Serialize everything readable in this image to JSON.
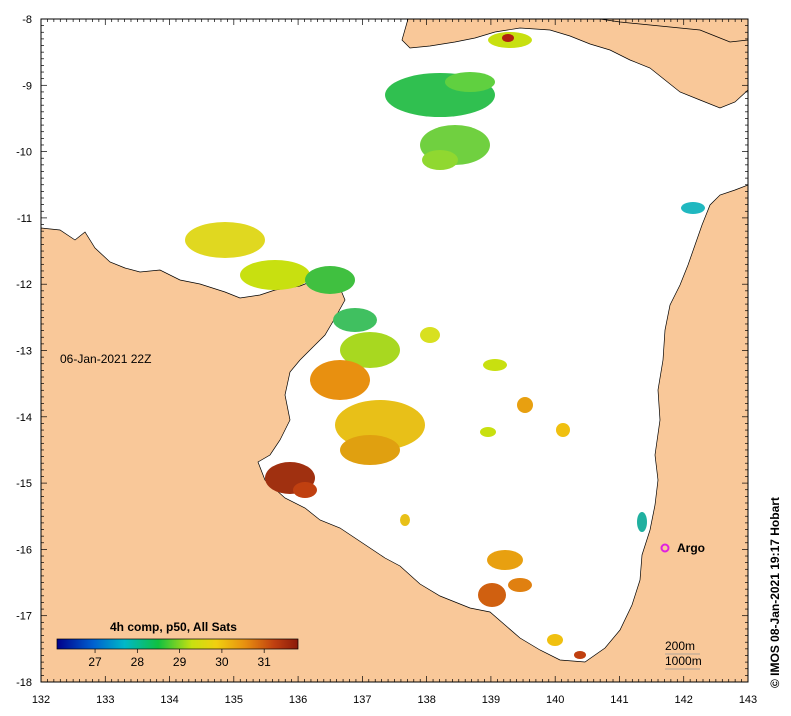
{
  "map": {
    "datetime_label": "06-Jan-2021 22Z",
    "credit": "© IMOS 08-Jan-2021 19:17 Hobart",
    "argo_label": "Argo",
    "colorbar": {
      "title": "4h comp, p50, All Sats",
      "ticks": [
        "27",
        "28",
        "29",
        "30",
        "31"
      ]
    },
    "contours": {
      "shallow": "200m",
      "deep": "1000m"
    },
    "lon_ticks": [
      "132",
      "133",
      "134",
      "135",
      "136",
      "137",
      "138",
      "139",
      "140",
      "141",
      "142",
      "143"
    ],
    "lat_ticks": [
      "-8",
      "-9",
      "-10",
      "-11",
      "-12",
      "-13",
      "-14",
      "-15",
      "-16",
      "-17",
      "-18"
    ],
    "colors": {
      "land": "#F9C899",
      "ocean": "#FFFFFF",
      "argo": "#E020E0",
      "sst_cold": "#00008B",
      "sst_warm": "#8B1A0A"
    }
  }
}
